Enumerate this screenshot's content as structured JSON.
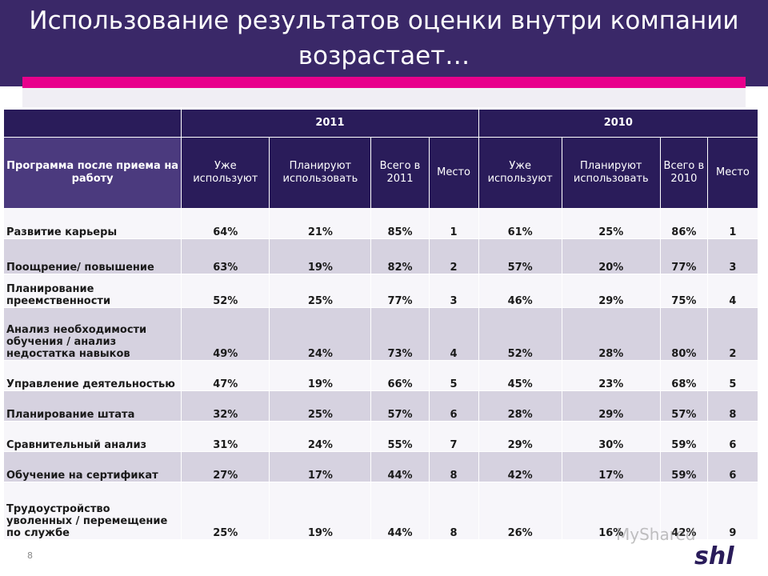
{
  "title": "Использование результатов оценки внутри компании возрастает…",
  "years": [
    "2011",
    "2010"
  ],
  "columns": {
    "program": "Программа после приема на работу",
    "y2011": [
      "Уже используют",
      "Планируют использовать",
      "Всего в 2011",
      "Место"
    ],
    "y2010": [
      "Уже используют",
      "Планируют использовать",
      "Всего в 2010",
      "Место"
    ]
  },
  "rows": [
    {
      "name": "Развитие карьеры",
      "v": [
        "64%",
        "21%",
        "85%",
        "1",
        "61%",
        "25%",
        "86%",
        "1"
      ]
    },
    {
      "name": "Поощрение/ повышение",
      "v": [
        "63%",
        "19%",
        "82%",
        "2",
        "57%",
        "20%",
        "77%",
        "3"
      ]
    },
    {
      "name": "Планирование преемственности",
      "v": [
        "52%",
        "25%",
        "77%",
        "3",
        "46%",
        "29%",
        "75%",
        "4"
      ]
    },
    {
      "name": "Анализ необходимости обучения / анализ недостатка навыков",
      "v": [
        "49%",
        "24%",
        "73%",
        "4",
        "52%",
        "28%",
        "80%",
        "2"
      ]
    },
    {
      "name": "Управление деятельностью",
      "v": [
        "47%",
        "19%",
        "66%",
        "5",
        "45%",
        "23%",
        "68%",
        "5"
      ]
    },
    {
      "name": "Планирование штата",
      "v": [
        "32%",
        "25%",
        "57%",
        "6",
        "28%",
        "29%",
        "57%",
        "8"
      ]
    },
    {
      "name": "Сравнительный анализ",
      "v": [
        "31%",
        "24%",
        "55%",
        "7",
        "29%",
        "30%",
        "59%",
        "6"
      ]
    },
    {
      "name": "Обучение на сертификат",
      "v": [
        "27%",
        "17%",
        "44%",
        "8",
        "42%",
        "17%",
        "59%",
        "6"
      ]
    },
    {
      "name": "Трудоустройство уволенных / перемещение по службе",
      "v": [
        "25%",
        "19%",
        "44%",
        "8",
        "26%",
        "16%",
        "42%",
        "9"
      ]
    }
  ],
  "page_number": "8",
  "logo_text": "shl",
  "watermark_text": "MyShared",
  "colors": {
    "header": "#3a2868",
    "accent": "#e8008c",
    "table_header": "#2a1c5a"
  }
}
